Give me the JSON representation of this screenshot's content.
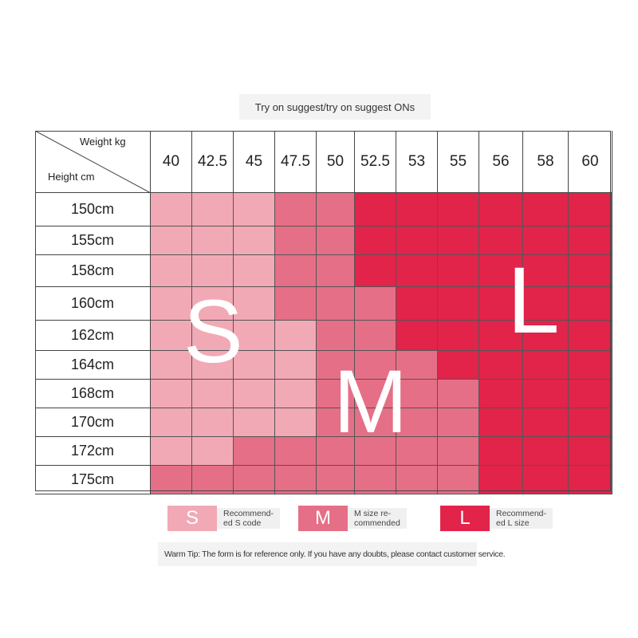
{
  "title": "Try on suggest/try on suggest ONs",
  "table": {
    "corner_weight_label": "Weight kg",
    "corner_height_label": "Height cm",
    "weights": [
      "40",
      "42.5",
      "45",
      "47.5",
      "50",
      "52.5",
      "53",
      "55",
      "56",
      "58",
      "60"
    ],
    "heights": [
      "150cm",
      "155cm",
      "158cm",
      "160cm",
      "162cm",
      "164cm",
      "168cm",
      "170cm",
      "172cm",
      "175cm"
    ],
    "sizes": [
      [
        "S",
        "S",
        "S",
        "M",
        "M",
        "L",
        "L",
        "L",
        "L",
        "L",
        "L"
      ],
      [
        "S",
        "S",
        "S",
        "M",
        "M",
        "L",
        "L",
        "L",
        "L",
        "L",
        "L"
      ],
      [
        "S",
        "S",
        "S",
        "M",
        "M",
        "L",
        "L",
        "L",
        "L",
        "L",
        "L"
      ],
      [
        "S",
        "S",
        "S",
        "M",
        "M",
        "M",
        "L",
        "L",
        "L",
        "L",
        "L"
      ],
      [
        "S",
        "S",
        "S",
        "S",
        "M",
        "M",
        "L",
        "L",
        "L",
        "L",
        "L"
      ],
      [
        "S",
        "S",
        "S",
        "S",
        "M",
        "M",
        "M",
        "L",
        "L",
        "L",
        "L"
      ],
      [
        "S",
        "S",
        "S",
        "S",
        "M",
        "M",
        "M",
        "M",
        "L",
        "L",
        "L"
      ],
      [
        "S",
        "S",
        "S",
        "S",
        "M",
        "M",
        "M",
        "M",
        "L",
        "L",
        "L"
      ],
      [
        "S",
        "S",
        "M",
        "M",
        "M",
        "M",
        "M",
        "M",
        "L",
        "L",
        "L"
      ],
      [
        "M",
        "M",
        "M",
        "M",
        "M",
        "M",
        "M",
        "M",
        "L",
        "L",
        "L"
      ]
    ],
    "overlay_letters": {
      "S": "S",
      "M": "M",
      "L": "L"
    }
  },
  "colors": {
    "S": "#f2a9b6",
    "M": "#e56f86",
    "L": "#e2234a"
  },
  "legend": [
    {
      "size": "S",
      "letter": "S",
      "text_line1": "Recommend-",
      "text_line2": "ed S code"
    },
    {
      "size": "M",
      "letter": "M",
      "text_line1": "M size re-",
      "text_line2": "commended"
    },
    {
      "size": "L",
      "letter": "L",
      "text_line1": "Recommend-",
      "text_line2": "ed L size"
    }
  ],
  "tip": "Warm Tip: The form is for reference only. If you have any doubts, please contact customer service."
}
